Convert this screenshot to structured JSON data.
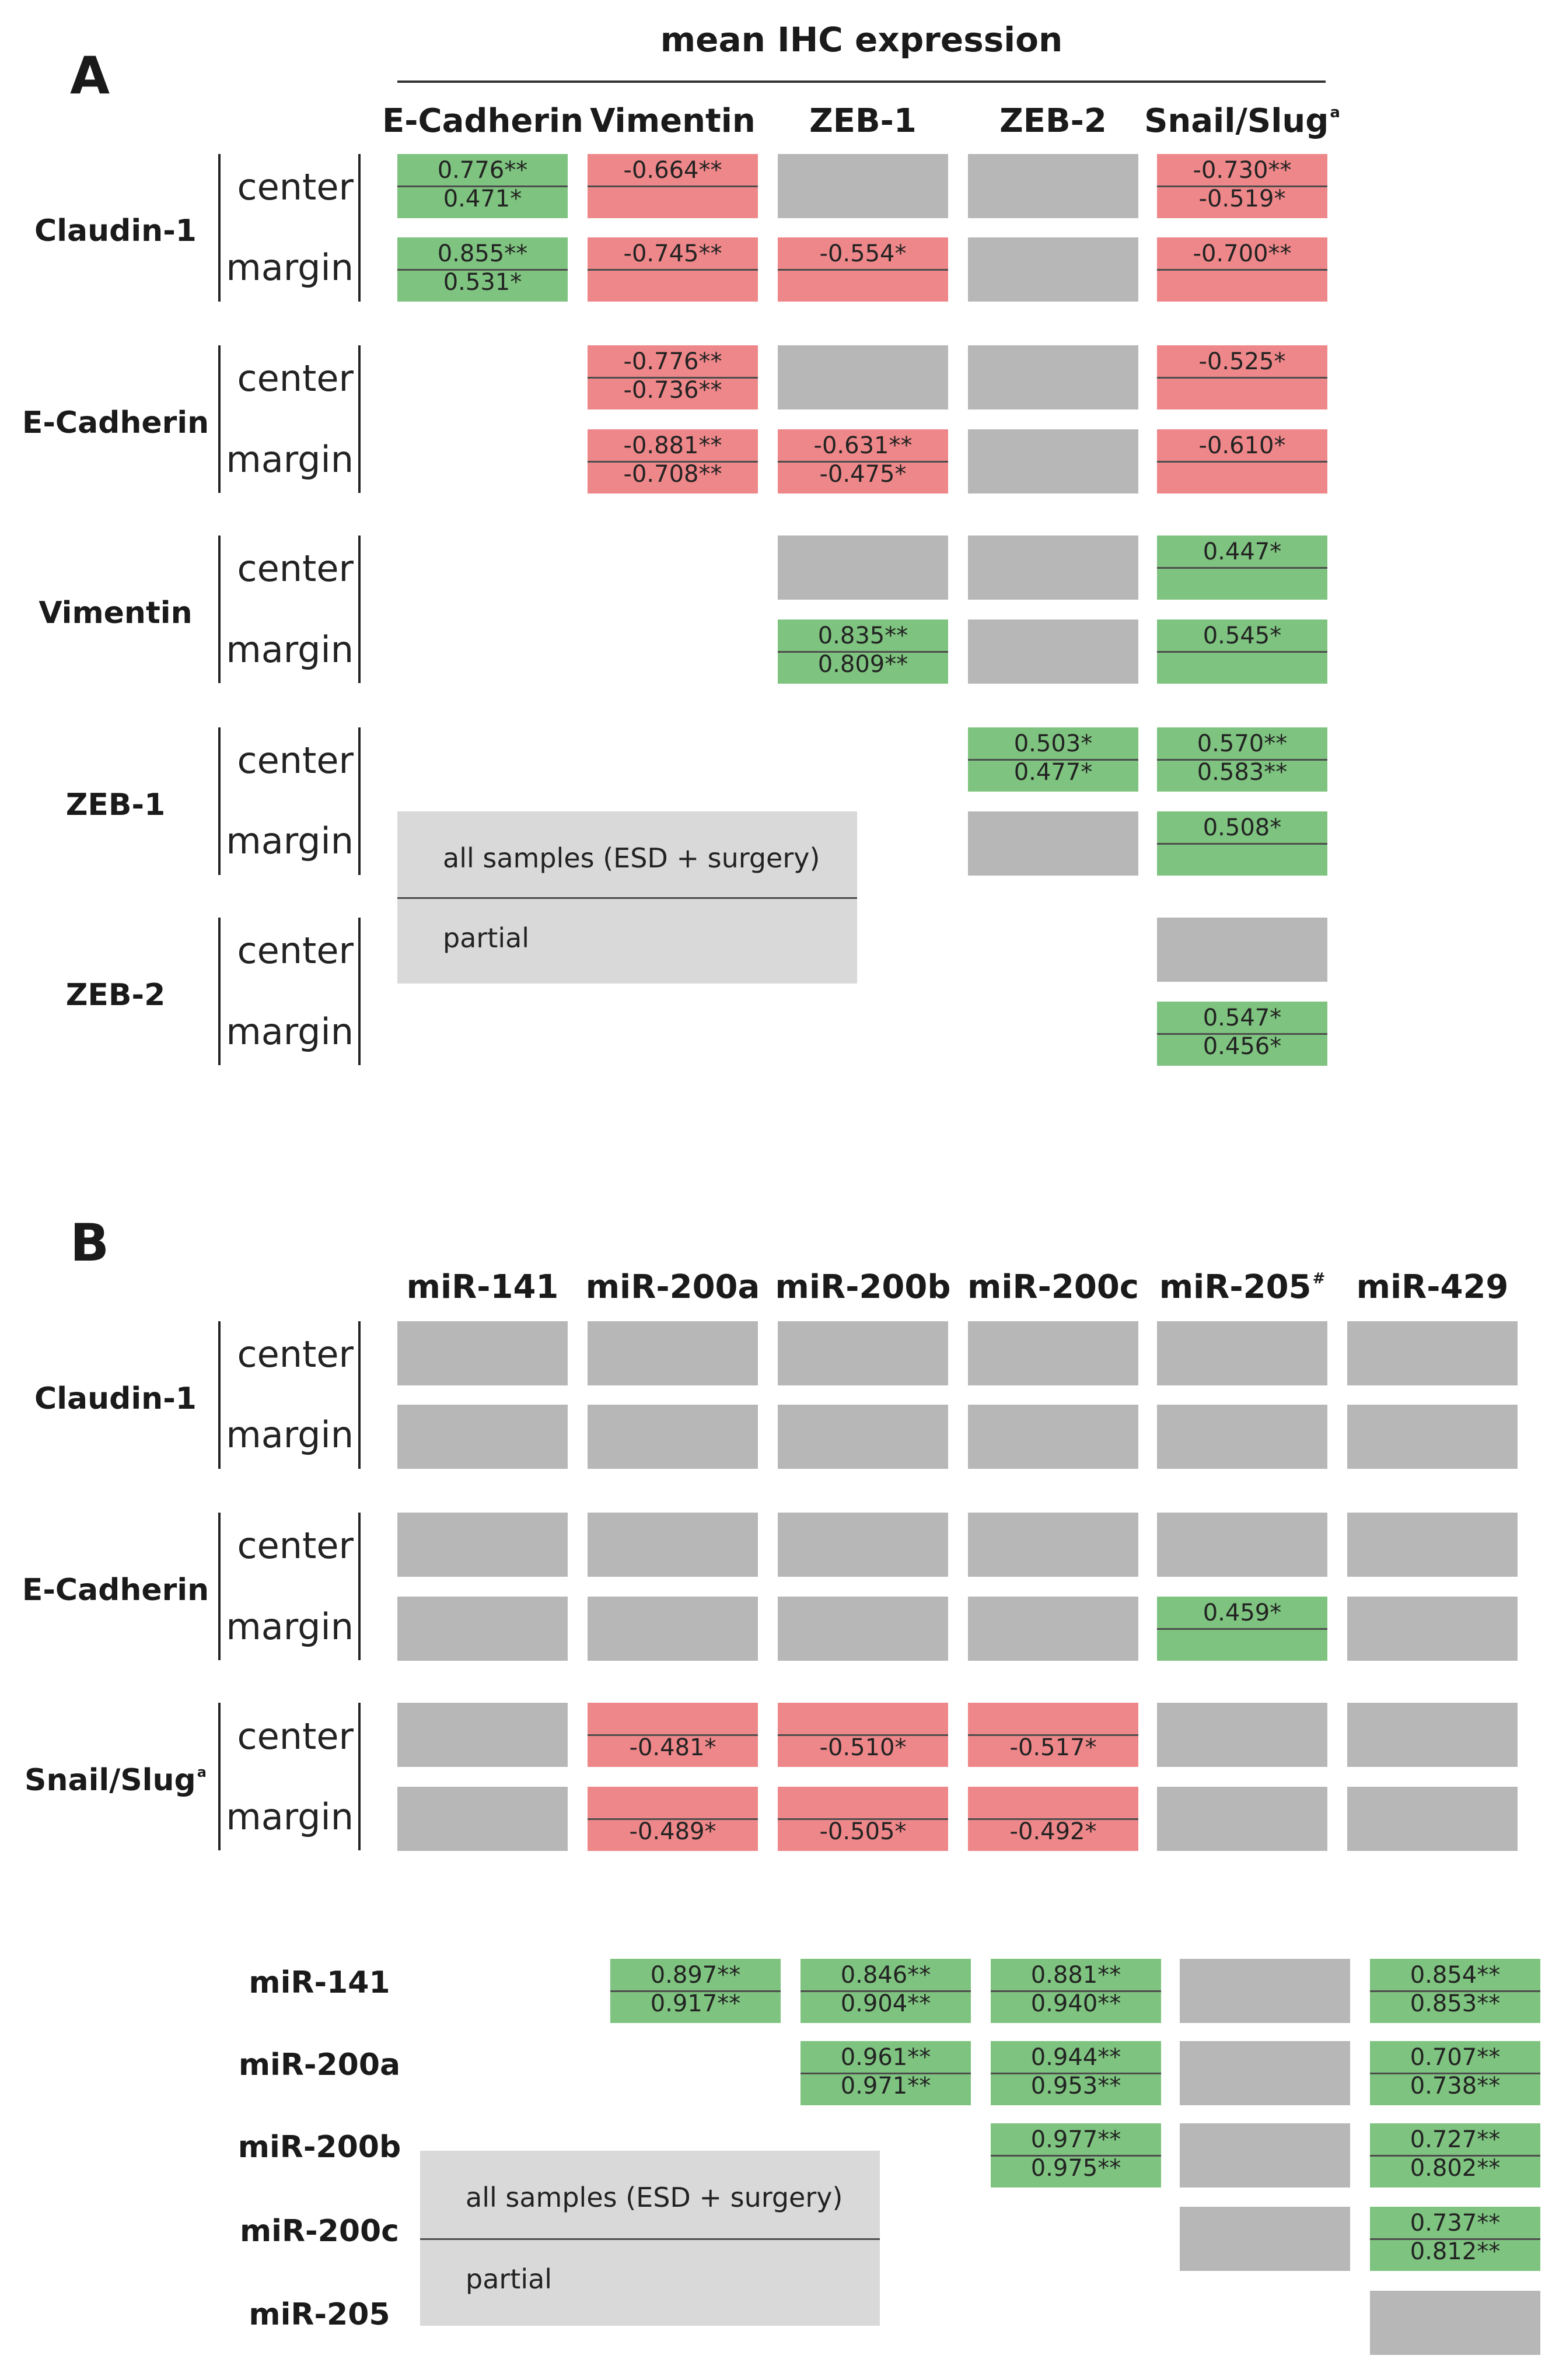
{
  "panel_a": {
    "letter": "A",
    "title": "mean IHC expression",
    "columns": [
      {
        "label": "E-Cadherin",
        "sup": ""
      },
      {
        "label": "Vimentin",
        "sup": ""
      },
      {
        "label": "ZEB-1",
        "sup": ""
      },
      {
        "label": "ZEB-2",
        "sup": ""
      },
      {
        "label": "Snail/Slug",
        "sup": "a"
      }
    ],
    "rows": [
      {
        "label": "Claudin-1",
        "sup": "",
        "subs": [
          "center",
          "margin"
        ]
      },
      {
        "label": "E-Cadherin",
        "sup": "",
        "subs": [
          "center",
          "margin"
        ]
      },
      {
        "label": "Vimentin",
        "sup": "",
        "subs": [
          "center",
          "margin"
        ]
      },
      {
        "label": "ZEB-1",
        "sup": "",
        "subs": [
          "center",
          "margin"
        ]
      },
      {
        "label": "ZEB-2",
        "sup": "",
        "subs": [
          "center",
          "margin"
        ]
      }
    ],
    "legend": {
      "all": "all samples (ESD + surgery)",
      "partial": "partial"
    }
  },
  "panel_b": {
    "letter": "B",
    "columns": [
      {
        "label": "miR-141",
        "sup": ""
      },
      {
        "label": "miR-200a",
        "sup": ""
      },
      {
        "label": "miR-200b",
        "sup": ""
      },
      {
        "label": "miR-200c",
        "sup": ""
      },
      {
        "label": "miR-205",
        "sup": "#"
      },
      {
        "label": "miR-429",
        "sup": ""
      }
    ],
    "rows": [
      {
        "label": "Claudin-1",
        "sup": "",
        "subs": [
          "center",
          "margin"
        ]
      },
      {
        "label": "E-Cadherin",
        "sup": "",
        "subs": [
          "center",
          "margin"
        ]
      },
      {
        "label": "Snail/Slug",
        "sup": "a",
        "subs": [
          "center",
          "margin"
        ]
      }
    ],
    "mir_rows": [
      {
        "label": "miR-141"
      },
      {
        "label": "miR-200a"
      },
      {
        "label": "miR-200b"
      },
      {
        "label": "miR-200c"
      },
      {
        "label": "miR-205"
      }
    ],
    "legend": {
      "all": "all samples (ESD + surgery)",
      "partial": "partial"
    }
  },
  "colors": {
    "positive": "#7ec37f",
    "negative": "#ee8789",
    "not_significant": "#b7b7b7",
    "legend_box": "#d9d9d9"
  },
  "chart_data": [
    {
      "type": "heatmap",
      "title": "mean IHC expression",
      "columns": [
        "E-Cadherin",
        "Vimentin",
        "ZEB-1",
        "ZEB-2",
        "Snail/Slug"
      ],
      "cells": [
        {
          "row": "Claudin-1",
          "sub": "center",
          "col": "E-Cadherin",
          "status": "pos",
          "all": "0.776**",
          "partial": "0.471*"
        },
        {
          "row": "Claudin-1",
          "sub": "center",
          "col": "Vimentin",
          "status": "neg",
          "all": "-0.664**",
          "partial": ""
        },
        {
          "row": "Claudin-1",
          "sub": "center",
          "col": "ZEB-1",
          "status": "ns",
          "all": "",
          "partial": ""
        },
        {
          "row": "Claudin-1",
          "sub": "center",
          "col": "ZEB-2",
          "status": "ns",
          "all": "",
          "partial": ""
        },
        {
          "row": "Claudin-1",
          "sub": "center",
          "col": "Snail/Slug",
          "status": "neg",
          "all": "-0.730**",
          "partial": "-0.519*"
        },
        {
          "row": "Claudin-1",
          "sub": "margin",
          "col": "E-Cadherin",
          "status": "pos",
          "all": "0.855**",
          "partial": "0.531*"
        },
        {
          "row": "Claudin-1",
          "sub": "margin",
          "col": "Vimentin",
          "status": "neg",
          "all": "-0.745**",
          "partial": ""
        },
        {
          "row": "Claudin-1",
          "sub": "margin",
          "col": "ZEB-1",
          "status": "neg",
          "all": "-0.554*",
          "partial": ""
        },
        {
          "row": "Claudin-1",
          "sub": "margin",
          "col": "ZEB-2",
          "status": "ns",
          "all": "",
          "partial": ""
        },
        {
          "row": "Claudin-1",
          "sub": "margin",
          "col": "Snail/Slug",
          "status": "neg",
          "all": "-0.700**",
          "partial": ""
        },
        {
          "row": "E-Cadherin",
          "sub": "center",
          "col": "Vimentin",
          "status": "neg",
          "all": "-0.776**",
          "partial": "-0.736**"
        },
        {
          "row": "E-Cadherin",
          "sub": "center",
          "col": "ZEB-1",
          "status": "ns",
          "all": "",
          "partial": ""
        },
        {
          "row": "E-Cadherin",
          "sub": "center",
          "col": "ZEB-2",
          "status": "ns",
          "all": "",
          "partial": ""
        },
        {
          "row": "E-Cadherin",
          "sub": "center",
          "col": "Snail/Slug",
          "status": "neg",
          "all": "-0.525*",
          "partial": ""
        },
        {
          "row": "E-Cadherin",
          "sub": "margin",
          "col": "Vimentin",
          "status": "neg",
          "all": "-0.881**",
          "partial": "-0.708**"
        },
        {
          "row": "E-Cadherin",
          "sub": "margin",
          "col": "ZEB-1",
          "status": "neg",
          "all": "-0.631**",
          "partial": "-0.475*"
        },
        {
          "row": "E-Cadherin",
          "sub": "margin",
          "col": "ZEB-2",
          "status": "ns",
          "all": "",
          "partial": ""
        },
        {
          "row": "E-Cadherin",
          "sub": "margin",
          "col": "Snail/Slug",
          "status": "neg",
          "all": "-0.610*",
          "partial": ""
        },
        {
          "row": "Vimentin",
          "sub": "center",
          "col": "ZEB-1",
          "status": "ns",
          "all": "",
          "partial": ""
        },
        {
          "row": "Vimentin",
          "sub": "center",
          "col": "ZEB-2",
          "status": "ns",
          "all": "",
          "partial": ""
        },
        {
          "row": "Vimentin",
          "sub": "center",
          "col": "Snail/Slug",
          "status": "pos",
          "all": "0.447*",
          "partial": ""
        },
        {
          "row": "Vimentin",
          "sub": "margin",
          "col": "ZEB-1",
          "status": "pos",
          "all": "0.835**",
          "partial": "0.809**"
        },
        {
          "row": "Vimentin",
          "sub": "margin",
          "col": "ZEB-2",
          "status": "ns",
          "all": "",
          "partial": ""
        },
        {
          "row": "Vimentin",
          "sub": "margin",
          "col": "Snail/Slug",
          "status": "pos",
          "all": "0.545*",
          "partial": ""
        },
        {
          "row": "ZEB-1",
          "sub": "center",
          "col": "ZEB-2",
          "status": "pos",
          "all": "0.503*",
          "partial": "0.477*"
        },
        {
          "row": "ZEB-1",
          "sub": "center",
          "col": "Snail/Slug",
          "status": "pos",
          "all": "0.570**",
          "partial": "0.583**"
        },
        {
          "row": "ZEB-1",
          "sub": "margin",
          "col": "ZEB-2",
          "status": "ns",
          "all": "",
          "partial": ""
        },
        {
          "row": "ZEB-1",
          "sub": "margin",
          "col": "Snail/Slug",
          "status": "pos",
          "all": "0.508*",
          "partial": ""
        },
        {
          "row": "ZEB-2",
          "sub": "center",
          "col": "Snail/Slug",
          "status": "ns",
          "all": "",
          "partial": ""
        },
        {
          "row": "ZEB-2",
          "sub": "margin",
          "col": "Snail/Slug",
          "status": "pos",
          "all": "0.547*",
          "partial": "0.456*"
        }
      ]
    },
    {
      "type": "heatmap",
      "title": "",
      "columns": [
        "miR-141",
        "miR-200a",
        "miR-200b",
        "miR-200c",
        "miR-205",
        "miR-429"
      ],
      "cells": [
        {
          "row": "Claudin-1",
          "sub": "center",
          "col": "miR-141",
          "status": "ns",
          "all": "",
          "partial": ""
        },
        {
          "row": "Claudin-1",
          "sub": "center",
          "col": "miR-200a",
          "status": "ns",
          "all": "",
          "partial": ""
        },
        {
          "row": "Claudin-1",
          "sub": "center",
          "col": "miR-200b",
          "status": "ns",
          "all": "",
          "partial": ""
        },
        {
          "row": "Claudin-1",
          "sub": "center",
          "col": "miR-200c",
          "status": "ns",
          "all": "",
          "partial": ""
        },
        {
          "row": "Claudin-1",
          "sub": "center",
          "col": "miR-205",
          "status": "ns",
          "all": "",
          "partial": ""
        },
        {
          "row": "Claudin-1",
          "sub": "center",
          "col": "miR-429",
          "status": "ns",
          "all": "",
          "partial": ""
        },
        {
          "row": "Claudin-1",
          "sub": "margin",
          "col": "miR-141",
          "status": "ns",
          "all": "",
          "partial": ""
        },
        {
          "row": "Claudin-1",
          "sub": "margin",
          "col": "miR-200a",
          "status": "ns",
          "all": "",
          "partial": ""
        },
        {
          "row": "Claudin-1",
          "sub": "margin",
          "col": "miR-200b",
          "status": "ns",
          "all": "",
          "partial": ""
        },
        {
          "row": "Claudin-1",
          "sub": "margin",
          "col": "miR-200c",
          "status": "ns",
          "all": "",
          "partial": ""
        },
        {
          "row": "Claudin-1",
          "sub": "margin",
          "col": "miR-205",
          "status": "ns",
          "all": "",
          "partial": ""
        },
        {
          "row": "Claudin-1",
          "sub": "margin",
          "col": "miR-429",
          "status": "ns",
          "all": "",
          "partial": ""
        },
        {
          "row": "E-Cadherin",
          "sub": "center",
          "col": "miR-141",
          "status": "ns",
          "all": "",
          "partial": ""
        },
        {
          "row": "E-Cadherin",
          "sub": "center",
          "col": "miR-200a",
          "status": "ns",
          "all": "",
          "partial": ""
        },
        {
          "row": "E-Cadherin",
          "sub": "center",
          "col": "miR-200b",
          "status": "ns",
          "all": "",
          "partial": ""
        },
        {
          "row": "E-Cadherin",
          "sub": "center",
          "col": "miR-200c",
          "status": "ns",
          "all": "",
          "partial": ""
        },
        {
          "row": "E-Cadherin",
          "sub": "center",
          "col": "miR-205",
          "status": "ns",
          "all": "",
          "partial": ""
        },
        {
          "row": "E-Cadherin",
          "sub": "center",
          "col": "miR-429",
          "status": "ns",
          "all": "",
          "partial": ""
        },
        {
          "row": "E-Cadherin",
          "sub": "margin",
          "col": "miR-141",
          "status": "ns",
          "all": "",
          "partial": ""
        },
        {
          "row": "E-Cadherin",
          "sub": "margin",
          "col": "miR-200a",
          "status": "ns",
          "all": "",
          "partial": ""
        },
        {
          "row": "E-Cadherin",
          "sub": "margin",
          "col": "miR-200b",
          "status": "ns",
          "all": "",
          "partial": ""
        },
        {
          "row": "E-Cadherin",
          "sub": "margin",
          "col": "miR-200c",
          "status": "ns",
          "all": "",
          "partial": ""
        },
        {
          "row": "E-Cadherin",
          "sub": "margin",
          "col": "miR-205",
          "status": "pos",
          "all": "0.459*",
          "partial": ""
        },
        {
          "row": "E-Cadherin",
          "sub": "margin",
          "col": "miR-429",
          "status": "ns",
          "all": "",
          "partial": ""
        },
        {
          "row": "Snail/Slug",
          "sub": "center",
          "col": "miR-141",
          "status": "ns",
          "all": "",
          "partial": ""
        },
        {
          "row": "Snail/Slug",
          "sub": "center",
          "col": "miR-200a",
          "status": "neg",
          "all": "",
          "partial": "-0.481*"
        },
        {
          "row": "Snail/Slug",
          "sub": "center",
          "col": "miR-200b",
          "status": "neg",
          "all": "",
          "partial": "-0.510*"
        },
        {
          "row": "Snail/Slug",
          "sub": "center",
          "col": "miR-200c",
          "status": "neg",
          "all": "",
          "partial": "-0.517*"
        },
        {
          "row": "Snail/Slug",
          "sub": "center",
          "col": "miR-205",
          "status": "ns",
          "all": "",
          "partial": ""
        },
        {
          "row": "Snail/Slug",
          "sub": "center",
          "col": "miR-429",
          "status": "ns",
          "all": "",
          "partial": ""
        },
        {
          "row": "Snail/Slug",
          "sub": "margin",
          "col": "miR-141",
          "status": "ns",
          "all": "",
          "partial": ""
        },
        {
          "row": "Snail/Slug",
          "sub": "margin",
          "col": "miR-200a",
          "status": "neg",
          "all": "",
          "partial": "-0.489*"
        },
        {
          "row": "Snail/Slug",
          "sub": "margin",
          "col": "miR-200b",
          "status": "neg",
          "all": "",
          "partial": "-0.505*"
        },
        {
          "row": "Snail/Slug",
          "sub": "margin",
          "col": "miR-200c",
          "status": "neg",
          "all": "",
          "partial": "-0.492*"
        },
        {
          "row": "Snail/Slug",
          "sub": "margin",
          "col": "miR-205",
          "status": "ns",
          "all": "",
          "partial": ""
        },
        {
          "row": "Snail/Slug",
          "sub": "margin",
          "col": "miR-429",
          "status": "ns",
          "all": "",
          "partial": ""
        }
      ]
    },
    {
      "type": "heatmap",
      "title": "",
      "columns": [
        "miR-200a",
        "miR-200b",
        "miR-200c",
        "miR-205",
        "miR-429"
      ],
      "cells": [
        {
          "row": "miR-141",
          "col": "miR-200a",
          "status": "pos",
          "all": "0.897**",
          "partial": "0.917**"
        },
        {
          "row": "miR-141",
          "col": "miR-200b",
          "status": "pos",
          "all": "0.846**",
          "partial": "0.904**"
        },
        {
          "row": "miR-141",
          "col": "miR-200c",
          "status": "pos",
          "all": "0.881**",
          "partial": "0.940**"
        },
        {
          "row": "miR-141",
          "col": "miR-205",
          "status": "ns",
          "all": "",
          "partial": ""
        },
        {
          "row": "miR-141",
          "col": "miR-429",
          "status": "pos",
          "all": "0.854**",
          "partial": "0.853**"
        },
        {
          "row": "miR-200a",
          "col": "miR-200b",
          "status": "pos",
          "all": "0.961**",
          "partial": "0.971**"
        },
        {
          "row": "miR-200a",
          "col": "miR-200c",
          "status": "pos",
          "all": "0.944**",
          "partial": "0.953**"
        },
        {
          "row": "miR-200a",
          "col": "miR-205",
          "status": "ns",
          "all": "",
          "partial": ""
        },
        {
          "row": "miR-200a",
          "col": "miR-429",
          "status": "pos",
          "all": "0.707**",
          "partial": "0.738**"
        },
        {
          "row": "miR-200b",
          "col": "miR-200c",
          "status": "pos",
          "all": "0.977**",
          "partial": "0.975**"
        },
        {
          "row": "miR-200b",
          "col": "miR-205",
          "status": "ns",
          "all": "",
          "partial": ""
        },
        {
          "row": "miR-200b",
          "col": "miR-429",
          "status": "pos",
          "all": "0.727**",
          "partial": "0.802**"
        },
        {
          "row": "miR-200c",
          "col": "miR-205",
          "status": "ns",
          "all": "",
          "partial": ""
        },
        {
          "row": "miR-200c",
          "col": "miR-429",
          "status": "pos",
          "all": "0.737**",
          "partial": "0.812**"
        },
        {
          "row": "miR-205",
          "col": "miR-429",
          "status": "ns",
          "all": "",
          "partial": ""
        }
      ]
    }
  ]
}
